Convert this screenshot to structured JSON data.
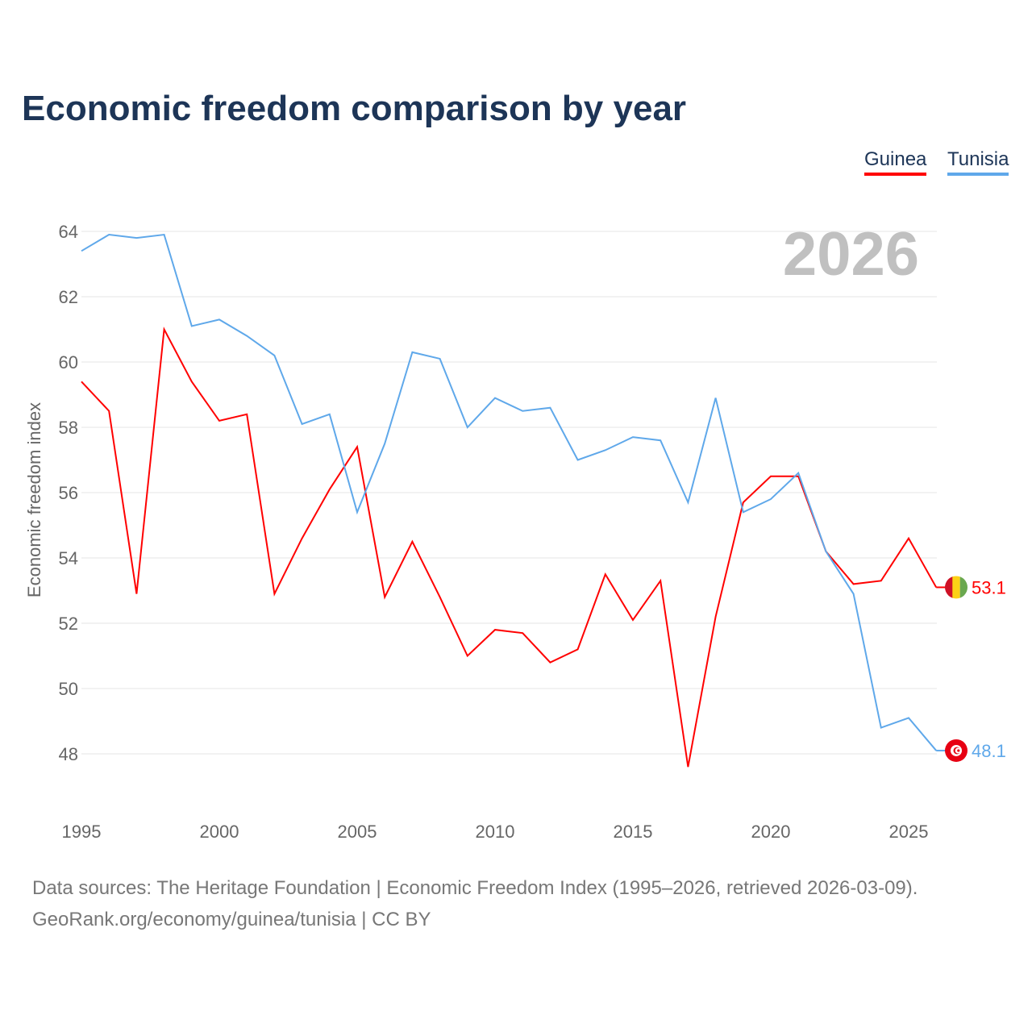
{
  "title": "Economic freedom comparison by year",
  "year_watermark": "2026",
  "footer": {
    "line1": "Data sources: The Heritage Foundation | Economic Freedom Index (1995–2026, retrieved 2026-03-09).",
    "line2": "GeoRank.org/economy/guinea/tunisia | CC BY"
  },
  "chart_data": {
    "type": "line",
    "title": "Economic freedom comparison by year",
    "xlabel": "",
    "ylabel": "Economic freedom index",
    "x": [
      1995,
      1996,
      1997,
      1998,
      1999,
      2000,
      2001,
      2002,
      2003,
      2004,
      2005,
      2006,
      2007,
      2008,
      2009,
      2010,
      2011,
      2012,
      2013,
      2014,
      2015,
      2016,
      2017,
      2018,
      2019,
      2020,
      2021,
      2022,
      2023,
      2024,
      2025,
      2026
    ],
    "xlim": [
      1995,
      2026
    ],
    "ylim": [
      46.5,
      65
    ],
    "xticks": [
      1995,
      2000,
      2005,
      2010,
      2015,
      2020,
      2025
    ],
    "yticks": [
      48,
      50,
      52,
      54,
      56,
      58,
      60,
      62,
      64
    ],
    "grid": true,
    "legend_position": "top-right",
    "series": [
      {
        "name": "Guinea",
        "color": "#ff0000",
        "end_label": "53.1",
        "values": [
          59.4,
          58.5,
          52.9,
          61.0,
          59.4,
          58.2,
          58.4,
          52.9,
          54.6,
          56.1,
          57.4,
          52.8,
          54.5,
          52.8,
          51.0,
          51.8,
          51.7,
          50.8,
          51.2,
          53.5,
          52.1,
          53.3,
          47.6,
          52.2,
          55.7,
          56.5,
          56.5,
          54.2,
          53.2,
          53.3,
          54.6,
          53.1
        ]
      },
      {
        "name": "Tunisia",
        "color": "#5fa8ea",
        "end_label": "48.1",
        "values": [
          63.4,
          63.9,
          63.8,
          63.9,
          61.1,
          61.3,
          60.8,
          60.2,
          58.1,
          58.4,
          55.4,
          57.5,
          60.3,
          60.1,
          58.0,
          58.9,
          58.5,
          58.6,
          57.0,
          57.3,
          57.7,
          57.6,
          55.7,
          58.9,
          55.4,
          55.8,
          56.6,
          54.2,
          52.9,
          48.8,
          49.1,
          48.1
        ]
      }
    ]
  }
}
